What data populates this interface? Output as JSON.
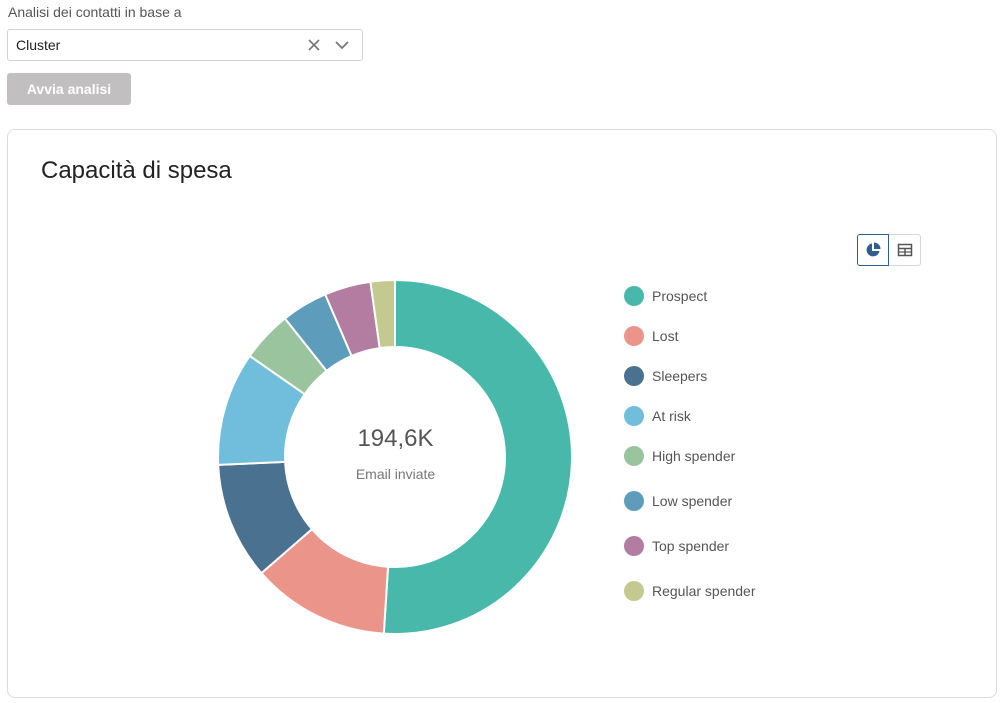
{
  "form": {
    "label": "Analisi dei contatti in base a",
    "select_value": "Cluster",
    "run_button": "Avvia analisi"
  },
  "card": {
    "title": "Capacità di spesa"
  },
  "chart_data": {
    "type": "pie",
    "variant": "donut",
    "title": "Capacità di spesa",
    "center_value": "194,6K",
    "center_label": "Email inviate",
    "total": 194600,
    "categories": [
      "Prospect",
      "Lost",
      "Sleepers",
      "At risk",
      "High spender",
      "Low spender",
      "Top spender",
      "Regular spender"
    ],
    "values": [
      50.6,
      12.5,
      10.6,
      10.3,
      4.6,
      4.2,
      4.2,
      2.2
    ],
    "value_unit": "percent",
    "colors": [
      "#48b8aa",
      "#ea948a",
      "#4a7190",
      "#70bedc",
      "#99c49d",
      "#5e9cbc",
      "#b37ca1",
      "#c4c990"
    ],
    "legend_position": "right"
  }
}
